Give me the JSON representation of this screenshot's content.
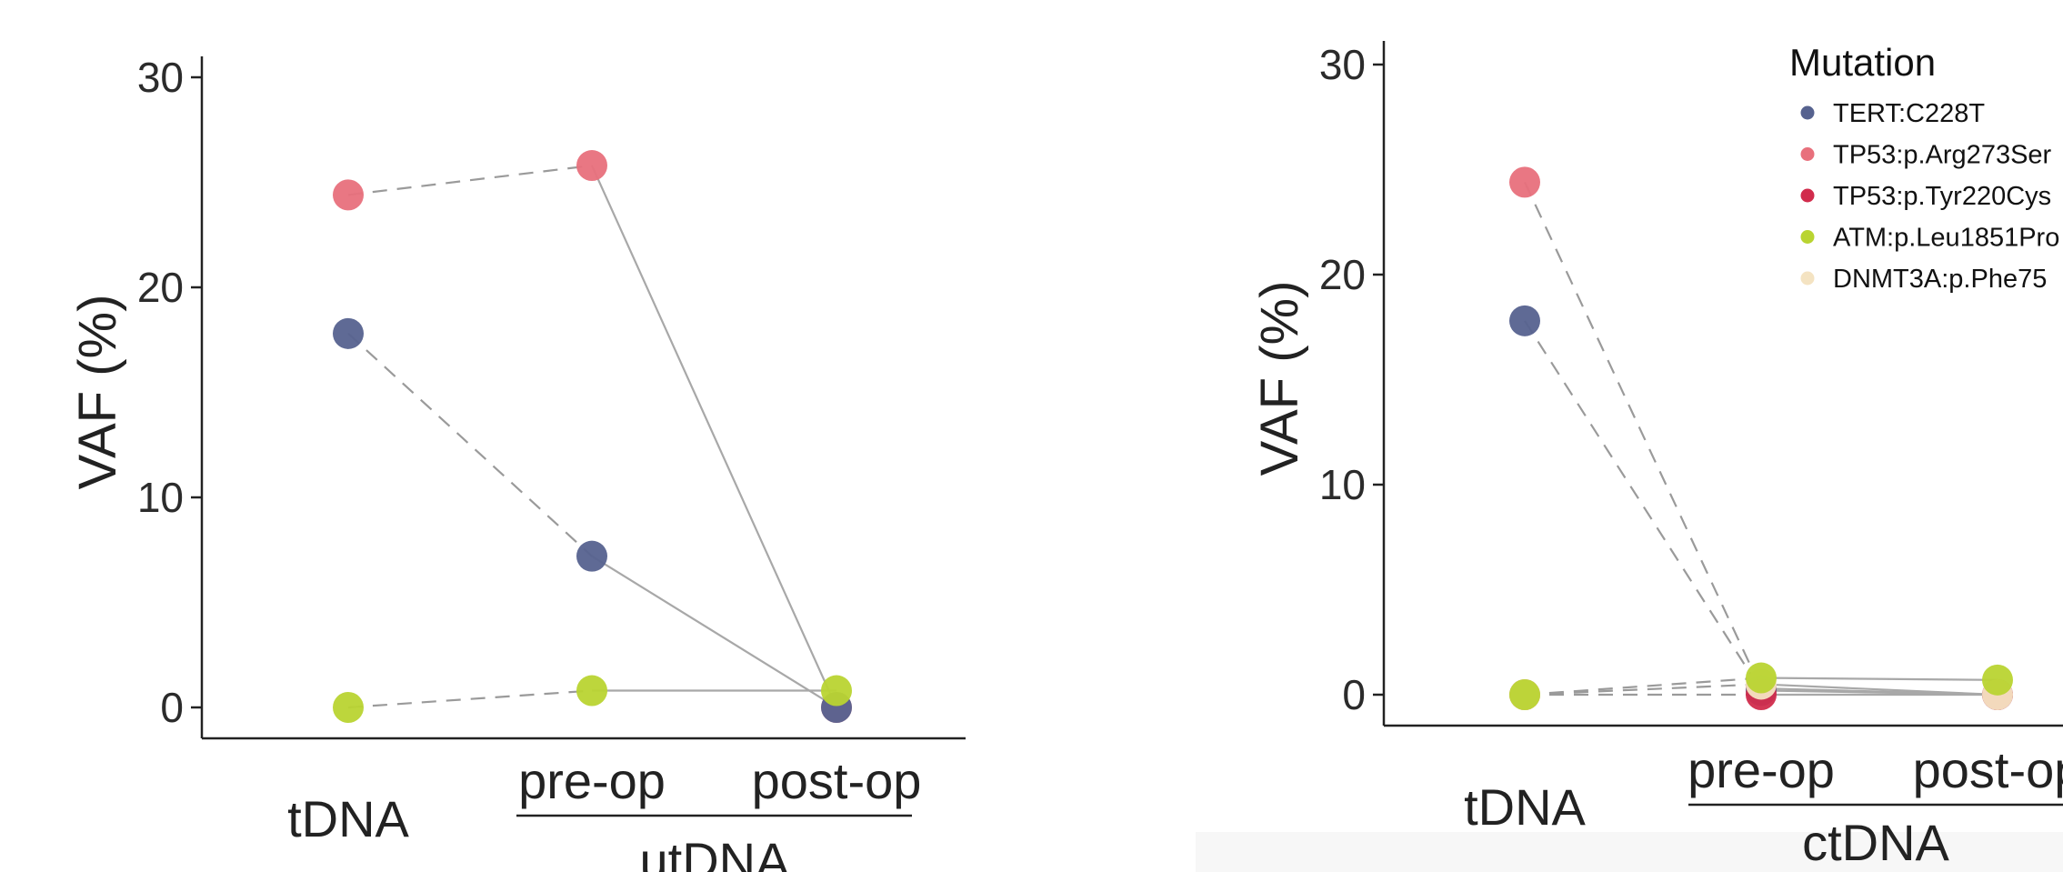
{
  "colors": {
    "TERT:C228T": "#56628f",
    "TP53:p.Arg273Ser": "#e8707c",
    "TP53:p.Tyr220Cys": "#d12c4c",
    "ATM:p.Leu1851Pro": "#b9d431",
    "DNMT3A:p.Phe75": "#f4e3c2"
  },
  "legend": {
    "title": "Mutation",
    "items": [
      "TERT:C228T",
      "TP53:p.Arg273Ser",
      "TP53:p.Tyr220Cys",
      "ATM:p.Leu1851Pro",
      "DNMT3A:p.Phe75"
    ]
  },
  "chart_data": [
    {
      "type": "scatter",
      "ylabel": "VAF (%)",
      "ylim": [
        -1.5,
        31
      ],
      "yticks": [
        0,
        10,
        20,
        30
      ],
      "categories": [
        "tDNA",
        "pre-op",
        "post-op"
      ],
      "group_label": "utDNA",
      "series": [
        {
          "name": "TP53:p.Arg273Ser",
          "values": [
            24.4,
            25.8,
            0
          ]
        },
        {
          "name": "TERT:C228T",
          "values": [
            17.8,
            7.2,
            0
          ]
        },
        {
          "name": "ATM:p.Leu1851Pro",
          "values": [
            0,
            0.8,
            0.8
          ]
        }
      ]
    },
    {
      "type": "scatter",
      "ylabel": "VAF (%)",
      "ylim": [
        -1.5,
        31
      ],
      "yticks": [
        0,
        10,
        20,
        30
      ],
      "categories": [
        "tDNA",
        "pre-op",
        "post-op"
      ],
      "group_label": "ctDNA",
      "series": [
        {
          "name": "TP53:p.Arg273Ser",
          "values": [
            24.4,
            0.3,
            0
          ]
        },
        {
          "name": "TERT:C228T",
          "values": [
            17.8,
            0.2,
            0
          ]
        },
        {
          "name": "TP53:p.Tyr220Cys",
          "values": [
            0,
            0,
            0
          ]
        },
        {
          "name": "DNMT3A:p.Phe75",
          "values": [
            0,
            0.5,
            0
          ]
        },
        {
          "name": "ATM:p.Leu1851Pro",
          "values": [
            0,
            0.8,
            0.7
          ]
        }
      ]
    }
  ]
}
